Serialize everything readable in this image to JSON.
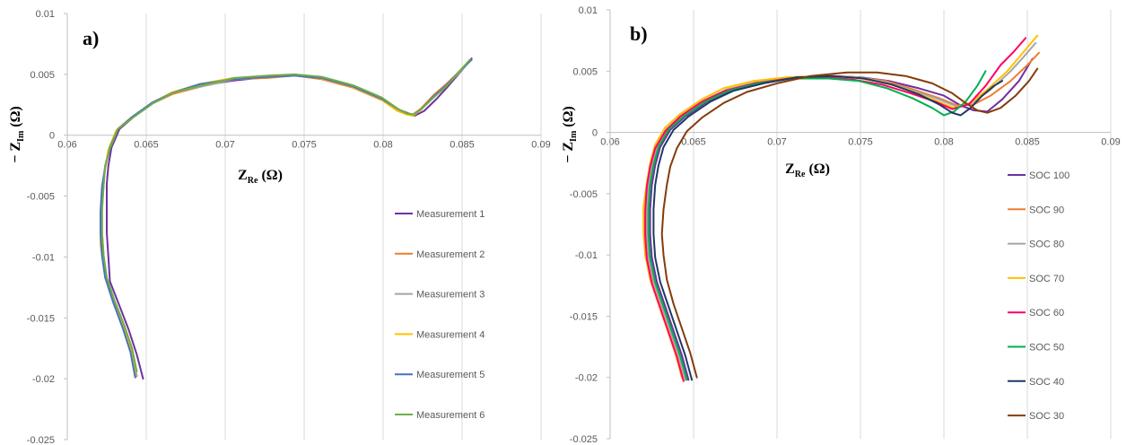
{
  "chart_data": [
    {
      "type": "line",
      "panel_label": "a)",
      "xlabel_main": "Z",
      "xlabel_sub": "Re",
      "xlabel_unit": "(Ω)",
      "ylabel_main": "− Z",
      "ylabel_sub": "Im",
      "ylabel_unit": "(Ω)",
      "xlim": [
        0.06,
        0.09
      ],
      "ylim": [
        -0.025,
        0.01
      ],
      "x_ticks": [
        "0.06",
        "0.065",
        "0.07",
        "0.075",
        "0.08",
        "0.085",
        "0.09"
      ],
      "y_ticks": [
        "-0.025",
        "-0.02",
        "-0.015",
        "-0.01",
        "-0.005",
        "0",
        "0.005",
        "0.01"
      ],
      "grid": "vertical",
      "legend_position": "right",
      "series": [
        {
          "name": "Measurement 1",
          "color": "#7030a0",
          "x": [
            0.0648,
            0.0644,
            0.0639,
            0.0633,
            0.0627,
            0.0626,
            0.0625,
            0.0625,
            0.0625,
            0.0626,
            0.0628,
            0.0633,
            0.0642,
            0.0655,
            0.0668,
            0.0686,
            0.0706,
            0.0728,
            0.0745,
            0.0762,
            0.0782,
            0.08,
            0.081,
            0.0816,
            0.082,
            0.0826,
            0.0834,
            0.0841,
            0.0849,
            0.0856
          ],
          "y": [
            -0.02,
            -0.018,
            -0.016,
            -0.014,
            -0.012,
            -0.01,
            -0.008,
            -0.006,
            -0.004,
            -0.0025,
            -0.001,
            0.0005,
            0.0015,
            0.0027,
            0.0035,
            0.0041,
            0.0045,
            0.0048,
            0.0049,
            0.0047,
            0.004,
            0.003,
            0.0021,
            0.0018,
            0.0016,
            0.002,
            0.003,
            0.004,
            0.0052,
            0.0063
          ]
        },
        {
          "name": "Measurement 2",
          "color": "#ed7d31",
          "x": [
            0.0644,
            0.0641,
            0.0636,
            0.063,
            0.0625,
            0.0623,
            0.0622,
            0.0622,
            0.0623,
            0.0624,
            0.0627,
            0.0632,
            0.0641,
            0.0654,
            0.0667,
            0.0685,
            0.0706,
            0.0727,
            0.0744,
            0.0761,
            0.0781,
            0.0799,
            0.081,
            0.0815,
            0.0819,
            0.0824,
            0.0832,
            0.084,
            0.0848,
            0.0855
          ],
          "y": [
            -0.0198,
            -0.0178,
            -0.0158,
            -0.0138,
            -0.0118,
            -0.01,
            -0.008,
            -0.006,
            -0.004,
            -0.0025,
            -0.001,
            0.0005,
            0.0015,
            0.0026,
            0.0034,
            0.004,
            0.0046,
            0.0047,
            0.0049,
            0.0046,
            0.0039,
            0.0029,
            0.0021,
            0.0018,
            0.0017,
            0.0022,
            0.0033,
            0.0042,
            0.0052,
            0.0061
          ]
        },
        {
          "name": "Measurement 3",
          "color": "#a5a5a5",
          "x": [
            0.0644,
            0.0641,
            0.0636,
            0.063,
            0.0625,
            0.0623,
            0.0622,
            0.0622,
            0.0623,
            0.0624,
            0.0627,
            0.0632,
            0.0641,
            0.0654,
            0.0667,
            0.0685,
            0.0706,
            0.0727,
            0.0744,
            0.0761,
            0.0781,
            0.0799,
            0.081,
            0.0815,
            0.0819,
            0.0824,
            0.0832,
            0.084,
            0.0848,
            0.0855
          ],
          "y": [
            -0.0197,
            -0.0177,
            -0.0157,
            -0.0137,
            -0.0117,
            -0.0099,
            -0.008,
            -0.006,
            -0.004,
            -0.0025,
            -0.001,
            0.0005,
            0.0015,
            0.0026,
            0.0035,
            0.004,
            0.0046,
            0.0048,
            0.0049,
            0.0047,
            0.004,
            0.003,
            0.0021,
            0.0018,
            0.0017,
            0.0021,
            0.0032,
            0.0041,
            0.0051,
            0.0061
          ]
        },
        {
          "name": "Measurement 4",
          "color": "#ffc000",
          "x": [
            0.0643,
            0.064,
            0.0635,
            0.0629,
            0.0624,
            0.0622,
            0.0621,
            0.0621,
            0.0622,
            0.0624,
            0.0626,
            0.0631,
            0.064,
            0.0653,
            0.0666,
            0.0684,
            0.0705,
            0.0726,
            0.0743,
            0.076,
            0.078,
            0.0798,
            0.0809,
            0.0815,
            0.0819,
            0.0824,
            0.0832,
            0.084,
            0.0848,
            0.0855
          ],
          "y": [
            -0.0196,
            -0.0176,
            -0.0156,
            -0.0136,
            -0.0116,
            -0.0098,
            -0.009,
            -0.0065,
            -0.0045,
            -0.0028,
            -0.0012,
            0.0004,
            0.0014,
            0.0026,
            0.0035,
            0.0042,
            0.0047,
            0.0048,
            0.005,
            0.0047,
            0.004,
            0.003,
            0.002,
            0.0017,
            0.0016,
            0.0021,
            0.0032,
            0.0041,
            0.0052,
            0.0062
          ]
        },
        {
          "name": "Measurement 5",
          "color": "#4472c4",
          "x": [
            0.0643,
            0.064,
            0.0635,
            0.0629,
            0.0624,
            0.0622,
            0.0621,
            0.0621,
            0.0622,
            0.0624,
            0.0627,
            0.0632,
            0.0641,
            0.0654,
            0.0667,
            0.0684,
            0.0705,
            0.0727,
            0.0744,
            0.0761,
            0.0781,
            0.0799,
            0.081,
            0.0815,
            0.0819,
            0.0824,
            0.0832,
            0.084,
            0.0848,
            0.0856
          ],
          "y": [
            -0.0199,
            -0.0178,
            -0.0158,
            -0.0137,
            -0.0117,
            -0.0099,
            -0.008,
            -0.0063,
            -0.0042,
            -0.0026,
            -0.001,
            0.0005,
            0.0015,
            0.0027,
            0.0035,
            0.0042,
            0.0046,
            0.0048,
            0.0049,
            0.0047,
            0.004,
            0.003,
            0.0021,
            0.0018,
            0.0017,
            0.0021,
            0.0032,
            0.0041,
            0.0052,
            0.0062
          ]
        },
        {
          "name": "Measurement 6",
          "color": "#70ad47",
          "x": [
            0.0644,
            0.0641,
            0.0636,
            0.063,
            0.0625,
            0.0623,
            0.0622,
            0.0622,
            0.0623,
            0.0624,
            0.0627,
            0.0632,
            0.0641,
            0.0654,
            0.0667,
            0.0685,
            0.0706,
            0.0727,
            0.0744,
            0.0761,
            0.0781,
            0.0799,
            0.081,
            0.0815,
            0.0819,
            0.0824,
            0.0832,
            0.084,
            0.0848,
            0.0855
          ],
          "y": [
            -0.0194,
            -0.0175,
            -0.0156,
            -0.0136,
            -0.0117,
            -0.0099,
            -0.008,
            -0.0062,
            -0.0041,
            -0.0026,
            -0.0011,
            0.0005,
            0.0014,
            0.0026,
            0.0035,
            0.0041,
            0.0047,
            0.0049,
            0.005,
            0.0048,
            0.0041,
            0.0031,
            0.0021,
            0.0018,
            0.0017,
            0.0021,
            0.0031,
            0.004,
            0.0052,
            0.0062
          ]
        }
      ]
    },
    {
      "type": "line",
      "panel_label": "b)",
      "xlabel_main": "Z",
      "xlabel_sub": "Re",
      "xlabel_unit": "(Ω)",
      "ylabel_main": "− Z",
      "ylabel_sub": "Im",
      "ylabel_unit": "(Ω)",
      "xlim": [
        0.06,
        0.09
      ],
      "ylim": [
        -0.025,
        0.01
      ],
      "x_ticks": [
        "0.06",
        "0.065",
        "0.07",
        "0.075",
        "0.08",
        "0.085",
        "0.09"
      ],
      "y_ticks": [
        "-0.025",
        "-0.02",
        "-0.015",
        "-0.01",
        "-0.005",
        "0",
        "0.005",
        "0.01"
      ],
      "grid": "vertical",
      "legend_position": "right",
      "series": [
        {
          "name": "SOC 100",
          "color": "#7030a0",
          "x": [
            0.0647,
            0.0643,
            0.0638,
            0.0633,
            0.0628,
            0.0625,
            0.0624,
            0.0624,
            0.0625,
            0.0627,
            0.063,
            0.0636,
            0.0645,
            0.0658,
            0.0672,
            0.069,
            0.071,
            0.0732,
            0.075,
            0.0767,
            0.0785,
            0.08,
            0.081,
            0.0818,
            0.0826,
            0.0835,
            0.0845,
            0.0853
          ],
          "y": [
            -0.0202,
            -0.0182,
            -0.0162,
            -0.0142,
            -0.0122,
            -0.0102,
            -0.0083,
            -0.0063,
            -0.0043,
            -0.0027,
            -0.0012,
            0.0002,
            0.0013,
            0.0025,
            0.0034,
            0.004,
            0.0045,
            0.0046,
            0.0045,
            0.0042,
            0.0036,
            0.003,
            0.0022,
            0.0018,
            0.0017,
            0.0027,
            0.0042,
            0.006
          ]
        },
        {
          "name": "SOC 90",
          "color": "#ed7d31",
          "x": [
            0.0645,
            0.0641,
            0.0636,
            0.0631,
            0.0626,
            0.0623,
            0.0622,
            0.0622,
            0.0623,
            0.0625,
            0.0628,
            0.0634,
            0.0643,
            0.0656,
            0.067,
            0.0688,
            0.0708,
            0.073,
            0.0748,
            0.0765,
            0.0782,
            0.0797,
            0.0808,
            0.0818,
            0.0828,
            0.084,
            0.085,
            0.0857
          ],
          "y": [
            -0.0202,
            -0.0182,
            -0.0162,
            -0.0142,
            -0.0122,
            -0.0102,
            -0.0083,
            -0.0063,
            -0.0043,
            -0.0027,
            -0.0012,
            0.0002,
            0.0014,
            0.0026,
            0.0035,
            0.0041,
            0.0045,
            0.0046,
            0.0045,
            0.0042,
            0.0035,
            0.0028,
            0.0022,
            0.0023,
            0.003,
            0.0042,
            0.0055,
            0.0065
          ]
        },
        {
          "name": "SOC 80",
          "color": "#a5a5a5",
          "x": [
            0.0645,
            0.0641,
            0.0636,
            0.0631,
            0.0626,
            0.0623,
            0.0622,
            0.0622,
            0.0623,
            0.0625,
            0.0628,
            0.0634,
            0.0643,
            0.0656,
            0.067,
            0.0688,
            0.0708,
            0.073,
            0.0748,
            0.0765,
            0.0782,
            0.0797,
            0.0808,
            0.0818,
            0.0828,
            0.084,
            0.0848,
            0.0855
          ],
          "y": [
            -0.0201,
            -0.0181,
            -0.0161,
            -0.0141,
            -0.0121,
            -0.0101,
            -0.0082,
            -0.0062,
            -0.0042,
            -0.0026,
            -0.0011,
            0.0003,
            0.0014,
            0.0026,
            0.0035,
            0.0041,
            0.0045,
            0.0046,
            0.0045,
            0.0041,
            0.0034,
            0.0027,
            0.0021,
            0.0025,
            0.0035,
            0.005,
            0.0062,
            0.0073
          ]
        },
        {
          "name": "SOC 70",
          "color": "#ffc000",
          "x": [
            0.0643,
            0.0639,
            0.0634,
            0.0629,
            0.0624,
            0.0621,
            0.062,
            0.062,
            0.0622,
            0.0624,
            0.0627,
            0.0633,
            0.0642,
            0.0655,
            0.0668,
            0.0686,
            0.0706,
            0.0728,
            0.0746,
            0.0763,
            0.078,
            0.0795,
            0.0806,
            0.0816,
            0.0826,
            0.0838,
            0.0848,
            0.0856
          ],
          "y": [
            -0.02,
            -0.018,
            -0.016,
            -0.014,
            -0.012,
            -0.01,
            -0.0081,
            -0.0061,
            -0.0041,
            -0.0025,
            -0.001,
            0.0004,
            0.0015,
            0.0027,
            0.0036,
            0.0042,
            0.0045,
            0.0046,
            0.0045,
            0.0041,
            0.0034,
            0.0026,
            0.002,
            0.0024,
            0.0035,
            0.005,
            0.0066,
            0.0079
          ]
        },
        {
          "name": "SOC 60",
          "color": "#ff0066",
          "x": [
            0.0644,
            0.064,
            0.0635,
            0.063,
            0.0625,
            0.0622,
            0.0621,
            0.0621,
            0.0622,
            0.0624,
            0.0627,
            0.0633,
            0.0642,
            0.0655,
            0.0669,
            0.0687,
            0.0707,
            0.0729,
            0.0746,
            0.0763,
            0.078,
            0.0795,
            0.0805,
            0.0815,
            0.0825,
            0.0834,
            0.0842,
            0.0849
          ],
          "y": [
            -0.0203,
            -0.0183,
            -0.0163,
            -0.0143,
            -0.0123,
            -0.0103,
            -0.0084,
            -0.0064,
            -0.0044,
            -0.0028,
            -0.0013,
            0.0001,
            0.0013,
            0.0025,
            0.0034,
            0.004,
            0.0044,
            0.0045,
            0.0043,
            0.0039,
            0.0032,
            0.0025,
            0.0019,
            0.0023,
            0.0038,
            0.0055,
            0.0066,
            0.0077
          ]
        },
        {
          "name": "SOC 50",
          "color": "#00b050",
          "x": [
            0.0646,
            0.0642,
            0.0637,
            0.0632,
            0.0627,
            0.0624,
            0.0623,
            0.0623,
            0.0624,
            0.0626,
            0.0629,
            0.0635,
            0.0644,
            0.0657,
            0.0671,
            0.0689,
            0.0709,
            0.0731,
            0.0749,
            0.0766,
            0.0781,
            0.0793,
            0.08,
            0.0806,
            0.0813,
            0.082,
            0.0825
          ],
          "y": [
            -0.0202,
            -0.0182,
            -0.0162,
            -0.0142,
            -0.0122,
            -0.0102,
            -0.0083,
            -0.0063,
            -0.0043,
            -0.0027,
            -0.0012,
            0.0002,
            0.0013,
            0.0025,
            0.0034,
            0.004,
            0.0044,
            0.0044,
            0.0042,
            0.0036,
            0.0028,
            0.002,
            0.0014,
            0.0017,
            0.0025,
            0.0038,
            0.005
          ]
        },
        {
          "name": "SOC 40",
          "color": "#203864",
          "x": [
            0.0649,
            0.0645,
            0.064,
            0.0635,
            0.063,
            0.0627,
            0.0626,
            0.0626,
            0.0627,
            0.0629,
            0.0632,
            0.0638,
            0.0647,
            0.066,
            0.0674,
            0.0692,
            0.0712,
            0.0734,
            0.0752,
            0.0769,
            0.0785,
            0.0797,
            0.0805,
            0.081,
            0.0816,
            0.0823,
            0.083,
            0.0835
          ],
          "y": [
            -0.0202,
            -0.0182,
            -0.0162,
            -0.0142,
            -0.0122,
            -0.0102,
            -0.0083,
            -0.0063,
            -0.0043,
            -0.0027,
            -0.0012,
            0.0002,
            0.0013,
            0.0025,
            0.0034,
            0.004,
            0.0045,
            0.0046,
            0.0044,
            0.0039,
            0.0031,
            0.0023,
            0.0016,
            0.0014,
            0.002,
            0.003,
            0.0038,
            0.0042
          ]
        },
        {
          "name": "SOC 30",
          "color": "#843c0c",
          "x": [
            0.0652,
            0.0648,
            0.0643,
            0.0638,
            0.0634,
            0.0632,
            0.0631,
            0.0632,
            0.0634,
            0.0636,
            0.064,
            0.0646,
            0.0655,
            0.0668,
            0.0682,
            0.07,
            0.072,
            0.0742,
            0.076,
            0.0777,
            0.0793,
            0.0805,
            0.0813,
            0.082,
            0.0826,
            0.0834,
            0.0843,
            0.0851,
            0.0856
          ],
          "y": [
            -0.02,
            -0.018,
            -0.016,
            -0.014,
            -0.012,
            -0.01,
            -0.0083,
            -0.0063,
            -0.0043,
            -0.0028,
            -0.0013,
            0.0001,
            0.0012,
            0.0024,
            0.0033,
            0.004,
            0.0046,
            0.0049,
            0.0049,
            0.0046,
            0.004,
            0.0032,
            0.0024,
            0.0018,
            0.0016,
            0.002,
            0.003,
            0.0042,
            0.0052
          ]
        }
      ]
    }
  ]
}
